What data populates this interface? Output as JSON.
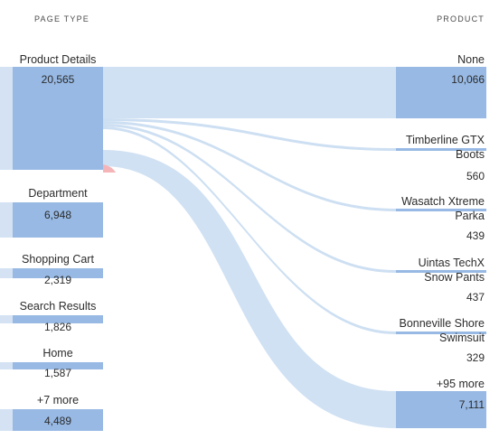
{
  "headers": {
    "left": "PAGE TYPE",
    "right": "PRODUCT"
  },
  "left_nodes": [
    {
      "label": "Product Details",
      "value": "20,565"
    },
    {
      "label": "Department",
      "value": "6,948"
    },
    {
      "label": "Shopping Cart",
      "value": "2,319"
    },
    {
      "label": "Search Results",
      "value": "1,826"
    },
    {
      "label": "Home",
      "value": "1,587"
    },
    {
      "label": "+7 more",
      "value": "4,489"
    }
  ],
  "right_nodes": [
    {
      "label": "None",
      "value": "10,066"
    },
    {
      "label_line1": "Timberline GTX",
      "label_line2": "Boots",
      "value": "560"
    },
    {
      "label_line1": "Wasatch Xtreme",
      "label_line2": "Parka",
      "value": "439"
    },
    {
      "label_line1": "Uintas TechX",
      "label_line2": "Snow Pants",
      "value": "437"
    },
    {
      "label_line1": "Bonneville Shore",
      "label_line2": "Swimsuit",
      "value": "329"
    },
    {
      "label": "+95 more",
      "value": "7,111"
    }
  ],
  "colors": {
    "node": "#97b9e4",
    "flow": "#cddff2",
    "accent": "#f5b5b8"
  }
}
